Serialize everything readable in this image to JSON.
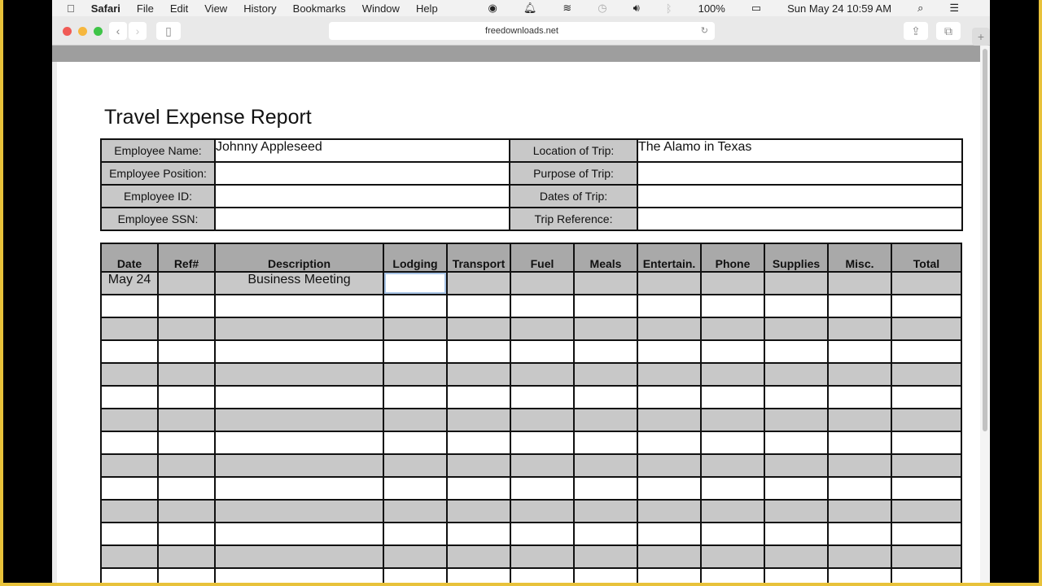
{
  "menubar": {
    "app": "Safari",
    "items": [
      "File",
      "Edit",
      "View",
      "History",
      "Bookmarks",
      "Window",
      "Help"
    ],
    "battery": "100%",
    "datetime": "Sun May 24  10:59 AM"
  },
  "browser": {
    "url": "freedownloads.net"
  },
  "report": {
    "title": "Travel Expense Report",
    "info": [
      {
        "label": "Employee Name:",
        "value": "Johnny Appleseed",
        "label2": "Location of Trip:",
        "value2": "The Alamo in Texas"
      },
      {
        "label": "Employee Position:",
        "value": "",
        "label2": "Purpose of Trip:",
        "value2": ""
      },
      {
        "label": "Employee ID:",
        "value": "",
        "label2": "Dates of Trip:",
        "value2": ""
      },
      {
        "label": "Employee SSN:",
        "value": "",
        "label2": "Trip Reference:",
        "value2": ""
      }
    ],
    "columns": [
      "Date",
      "Ref#",
      "Description",
      "Lodging",
      "Transport",
      "Fuel",
      "Meals",
      "Entertain.",
      "Phone",
      "Supplies",
      "Misc.",
      "Total"
    ],
    "rows": [
      [
        "May 24",
        "",
        "Business Meeting",
        "",
        "",
        "",
        "",
        "",
        "",
        "",
        "",
        ""
      ]
    ]
  }
}
